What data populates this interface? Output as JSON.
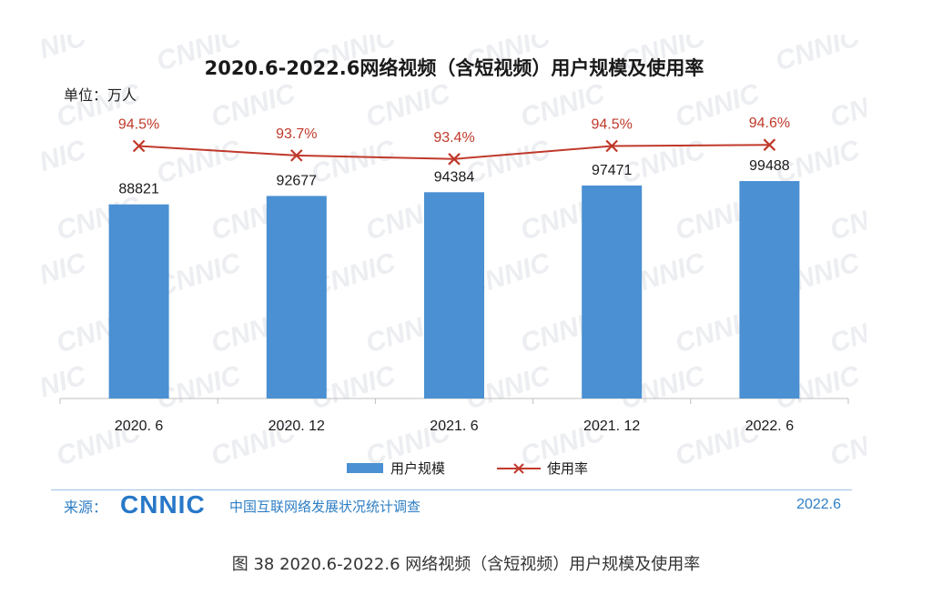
{
  "figure": {
    "title": "2020.6-2022.6网络视频（含短视频）用户规模及使用率",
    "unit": "单位：万人",
    "caption": "图 38  2020.6-2022.6 网络视频（含短视频）用户规模及使用率",
    "watermark": "CNNIC"
  },
  "footer": {
    "source_label": "来源：",
    "logo_text": "CNNIC",
    "survey_name": "中国互联网络发展状况统计调查",
    "date": "2022.6"
  },
  "colors": {
    "bar": "#4a90d2",
    "line": "#c0392b",
    "footer_text": "#2e7ec4"
  },
  "chart_data": {
    "type": "bar",
    "categories": [
      "2020. 6",
      "2020. 12",
      "2021. 6",
      "2021. 12",
      "2022. 6"
    ],
    "series": [
      {
        "name": "用户规模",
        "type": "bar",
        "values": [
          88821,
          92677,
          94384,
          97471,
          99488
        ],
        "labels": [
          "88821",
          "92677",
          "94384",
          "97471",
          "99488"
        ]
      },
      {
        "name": "使用率",
        "type": "line",
        "marker": "x",
        "values": [
          94.5,
          93.7,
          93.4,
          94.5,
          94.6
        ],
        "labels": [
          "94.5%",
          "93.7%",
          "93.4%",
          "94.5%",
          "94.6%"
        ]
      }
    ],
    "legend": {
      "position": "bottom",
      "items": [
        "用户规模",
        "使用率"
      ]
    },
    "grid": false
  }
}
